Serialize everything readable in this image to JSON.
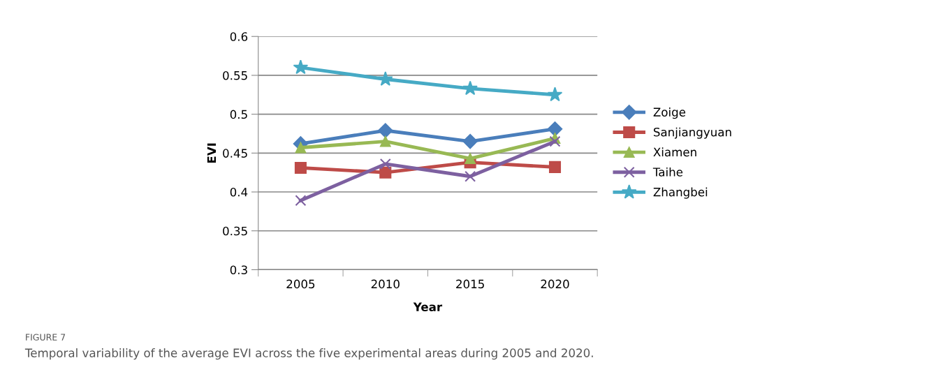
{
  "chart_data": {
    "type": "line",
    "xlabel": "Year",
    "ylabel": "EVI",
    "categories": [
      "2005",
      "2010",
      "2015",
      "2020"
    ],
    "series": [
      {
        "name": "Zoige",
        "color": "#4a7ebb",
        "marker": "diamond",
        "values": [
          0.462,
          0.479,
          0.465,
          0.481
        ]
      },
      {
        "name": "Sanjiangyuan",
        "color": "#be4b48",
        "marker": "square",
        "values": [
          0.431,
          0.425,
          0.438,
          0.432
        ]
      },
      {
        "name": "Xiamen",
        "color": "#98b954",
        "marker": "triangle",
        "values": [
          0.457,
          0.465,
          0.443,
          0.469
        ]
      },
      {
        "name": "Taihe",
        "color": "#7d60a0",
        "marker": "cross",
        "values": [
          0.389,
          0.436,
          0.42,
          0.465
        ]
      },
      {
        "name": "Zhangbei",
        "color": "#46aac5",
        "marker": "star",
        "values": [
          0.56,
          0.545,
          0.533,
          0.525
        ]
      }
    ],
    "ylim": [
      0.3,
      0.6
    ],
    "yticks": [
      0.3,
      0.35,
      0.4,
      0.45,
      0.5,
      0.55,
      0.6
    ],
    "grid": "y",
    "legend": "right",
    "line_style": "solid",
    "annotations": [
      "FIGURE 7",
      "Temporal variability of the average EVI across the five experimental areas during 2005 and 2020."
    ]
  }
}
